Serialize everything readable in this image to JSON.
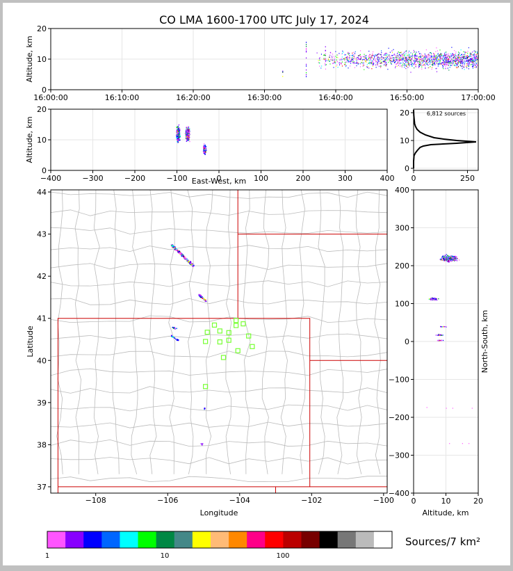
{
  "chart_data": {
    "type": "scatter",
    "title": "CO LMA 1600-1700 UTC July 17, 2024",
    "colors": {
      "frame": "#c0c0c0",
      "background": "#ffffff",
      "state_border": "#cc0000",
      "county_border": "#bbbbbb",
      "station": "#77ff33",
      "profile": "#000000"
    },
    "time_height": {
      "ylabel": "Altitude, km",
      "xlim": [
        "16:00:00",
        "17:00:00"
      ],
      "ylim": [
        0,
        20
      ],
      "xticks": [
        "16:00:00",
        "16:10:00",
        "16:20:00",
        "16:30:00",
        "16:40:00",
        "16:50:00",
        "17:00:00"
      ],
      "yticks": [
        "0",
        "10",
        "20"
      ]
    },
    "ew_height": {
      "xlabel": "East-West, km",
      "ylabel": "Altitude, km",
      "xlim": [
        -400,
        400
      ],
      "ylim": [
        0,
        20
      ],
      "xticks": [
        "−400",
        "−300",
        "−200",
        "−100",
        "0",
        "100",
        "200",
        "300",
        "400"
      ],
      "yticks": [
        "0",
        "10",
        "20"
      ]
    },
    "altitude_histogram": {
      "annotation": "6,812 sources",
      "xlim": [
        0,
        300
      ],
      "ylim": [
        0,
        21
      ],
      "xticks": [
        "0",
        "250"
      ],
      "yticks": [
        "0",
        "10",
        "20"
      ],
      "profile": [
        {
          "alt": 0.0,
          "count": 0
        },
        {
          "alt": 2.5,
          "count": 0
        },
        {
          "alt": 4.5,
          "count": 2
        },
        {
          "alt": 5.5,
          "count": 8
        },
        {
          "alt": 6.5,
          "count": 18
        },
        {
          "alt": 7.5,
          "count": 30
        },
        {
          "alt": 8.0,
          "count": 45
        },
        {
          "alt": 8.5,
          "count": 80
        },
        {
          "alt": 9.0,
          "count": 200
        },
        {
          "alt": 9.5,
          "count": 290
        },
        {
          "alt": 10.0,
          "count": 200
        },
        {
          "alt": 10.5,
          "count": 140
        },
        {
          "alt": 11.0,
          "count": 95
        },
        {
          "alt": 12.0,
          "count": 55
        },
        {
          "alt": 13.0,
          "count": 30
        },
        {
          "alt": 14.0,
          "count": 16
        },
        {
          "alt": 15.0,
          "count": 9
        },
        {
          "alt": 16.0,
          "count": 5
        },
        {
          "alt": 17.5,
          "count": 3
        },
        {
          "alt": 19.0,
          "count": 1
        },
        {
          "alt": 21.0,
          "count": 0
        }
      ]
    },
    "plan_view": {
      "xlabel": "Longitude",
      "ylabel": "Latitude",
      "xlim": [
        -109.25,
        -99.9
      ],
      "ylim": [
        36.85,
        44.05
      ],
      "xticks": [
        "−108",
        "−106",
        "−104",
        "−102",
        "−100"
      ],
      "yticks": [
        "37",
        "38",
        "39",
        "40",
        "41",
        "42",
        "43",
        "44"
      ],
      "stations": [
        {
          "lon": -104.1,
          "lat": 40.95
        },
        {
          "lon": -103.9,
          "lat": 40.87
        },
        {
          "lon": -104.1,
          "lat": 40.83
        },
        {
          "lon": -104.7,
          "lat": 40.84
        },
        {
          "lon": -104.55,
          "lat": 40.7
        },
        {
          "lon": -104.9,
          "lat": 40.67
        },
        {
          "lon": -104.3,
          "lat": 40.66
        },
        {
          "lon": -103.75,
          "lat": 40.58
        },
        {
          "lon": -104.95,
          "lat": 40.45
        },
        {
          "lon": -104.55,
          "lat": 40.44
        },
        {
          "lon": -104.3,
          "lat": 40.48
        },
        {
          "lon": -103.65,
          "lat": 40.33
        },
        {
          "lon": -104.05,
          "lat": 40.23
        },
        {
          "lon": -104.45,
          "lat": 40.07
        },
        {
          "lon": -104.95,
          "lat": 39.38
        }
      ],
      "source_regions": [
        {
          "lon": [
            -105.9,
            -105.3
          ],
          "lat": [
            42.25,
            42.75
          ],
          "count": 260
        },
        {
          "lon": [
            -105.15,
            -104.95
          ],
          "lat": [
            41.42,
            41.58
          ],
          "count": 40
        },
        {
          "lon": [
            -105.9,
            -105.75
          ],
          "lat": [
            40.76,
            40.8
          ],
          "count": 8
        },
        {
          "lon": [
            -105.95,
            -105.7
          ],
          "lat": [
            40.48,
            40.62
          ],
          "count": 14
        },
        {
          "lon": [
            -105.02,
            -104.95
          ],
          "lat": [
            38.86,
            38.9
          ],
          "count": 4
        },
        {
          "lon": [
            -105.1,
            -105.02
          ],
          "lat": [
            38.0,
            38.05
          ],
          "count": 3
        }
      ]
    },
    "ns_altitude": {
      "xlabel": "Altitude, km",
      "ylabel": "North-South, km",
      "xlim": [
        0,
        20
      ],
      "ylim": [
        -400,
        400
      ],
      "xticks": [
        "0",
        "10",
        "20"
      ],
      "yticks": [
        "−400",
        "−300",
        "−200",
        "−100",
        "0",
        "100",
        "200",
        "300",
        "400"
      ]
    },
    "colorbar": {
      "label": "Sources/7 km²",
      "ticks": [
        "1",
        "10",
        "100"
      ],
      "colors": [
        "#ff55ff",
        "#8800ff",
        "#0000ff",
        "#0066ff",
        "#00ffff",
        "#00ff00",
        "#008844",
        "#448888",
        "#ffff00",
        "#ffbb77",
        "#ff8800",
        "#ff0088",
        "#ff0000",
        "#bb0000",
        "#770000",
        "#000000",
        "#777777",
        "#bbbbbb",
        "#ffffff"
      ]
    }
  }
}
